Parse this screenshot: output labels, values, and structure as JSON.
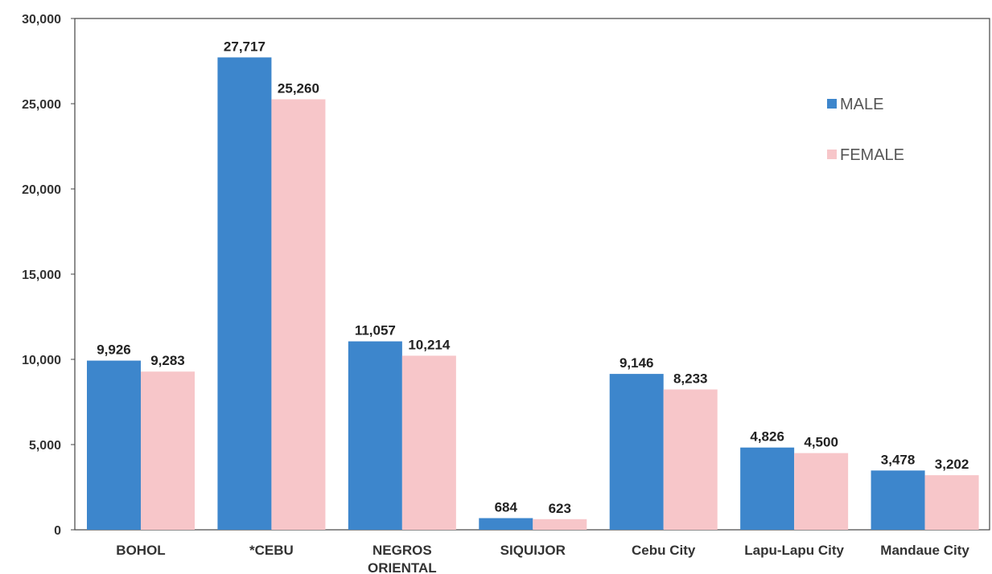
{
  "chart_data": {
    "type": "bar",
    "categories": [
      [
        "BOHOL"
      ],
      [
        "*CEBU"
      ],
      [
        "NEGROS",
        "ORIENTAL"
      ],
      [
        "SIQUIJOR"
      ],
      [
        "Cebu City"
      ],
      [
        "Lapu-Lapu City"
      ],
      [
        "Mandaue City"
      ]
    ],
    "series": [
      {
        "name": "MALE",
        "color": "#3d86cc",
        "values": [
          9926,
          27717,
          11057,
          684,
          9146,
          4826,
          3478
        ]
      },
      {
        "name": "FEMALE",
        "color": "#f7c6c9",
        "values": [
          9283,
          25260,
          10214,
          623,
          8233,
          4500,
          3202
        ]
      }
    ],
    "ylim": [
      0,
      30000
    ],
    "yticks": [
      0,
      5000,
      10000,
      15000,
      20000,
      25000,
      30000
    ],
    "grid": false,
    "legend_position": "top-right"
  }
}
